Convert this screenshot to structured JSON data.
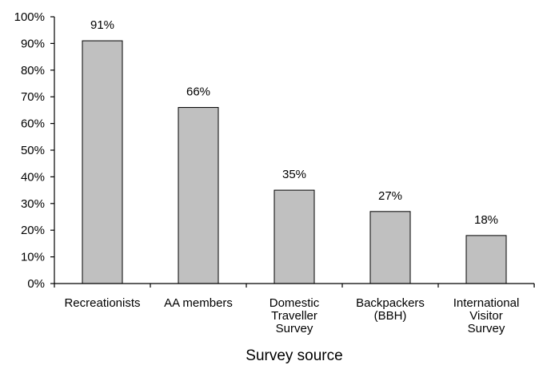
{
  "chart_data": {
    "type": "bar",
    "title": "",
    "xlabel": "Survey source",
    "ylabel": "",
    "ylim": [
      0,
      100
    ],
    "y_ticks": [
      0,
      10,
      20,
      30,
      40,
      50,
      60,
      70,
      80,
      90,
      100
    ],
    "y_tick_labels": [
      "0%",
      "10%",
      "20%",
      "30%",
      "40%",
      "50%",
      "60%",
      "70%",
      "80%",
      "90%",
      "100%"
    ],
    "categories": [
      [
        "Recreationists"
      ],
      [
        "AA members"
      ],
      [
        "Domestic",
        "Traveller",
        "Survey"
      ],
      [
        "Backpackers",
        "(BBH)"
      ],
      [
        "International",
        "Visitor",
        "Survey"
      ]
    ],
    "values": [
      91,
      66,
      35,
      27,
      18
    ],
    "data_labels": [
      "91%",
      "66%",
      "35%",
      "27%",
      "18%"
    ],
    "grid": false,
    "legend": "none",
    "colors": {
      "bar_fill": "#c0c0c0",
      "bar_stroke": "#000000",
      "axis": "#000000"
    }
  }
}
